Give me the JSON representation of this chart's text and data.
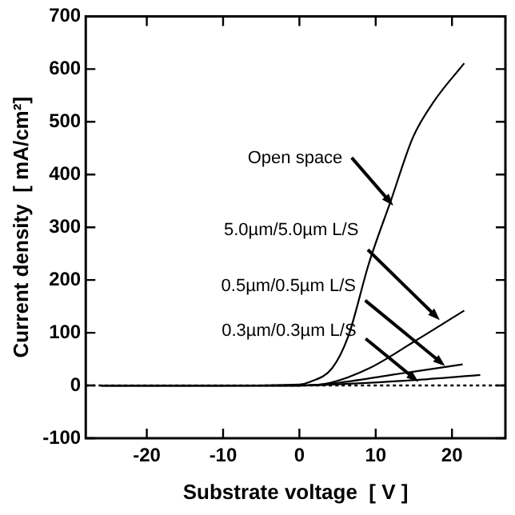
{
  "chart_data": {
    "type": "line",
    "xlabel": "Substrate voltage  [ V ]",
    "ylabel": "Current density  [ mA/cm²]",
    "xlim": [
      -28,
      27
    ],
    "xticks": [
      -20,
      -10,
      0,
      10,
      20
    ],
    "ylim": [
      -100,
      700
    ],
    "yticks": [
      -100,
      0,
      100,
      200,
      300,
      400,
      500,
      600,
      700
    ],
    "grid": false,
    "legend": false,
    "marker": "none",
    "line_style": "solid",
    "series": [
      {
        "color": "#000000",
        "x": [
          -26,
          -10,
          0,
          1.4,
          4.3,
          6.4,
          9.1,
          12,
          14.9,
          17.7,
          21.6
        ],
        "values": [
          0,
          0,
          2,
          7,
          33,
          93,
          231,
          351,
          471,
          540,
          611
        ]
      },
      {
        "color": "#000000",
        "x": [
          -26,
          0,
          4,
          9.2,
          14.9,
          21.6
        ],
        "values": [
          0,
          0,
          5,
          33,
          82,
          142
        ]
      },
      {
        "color": "#000000",
        "x": [
          -26,
          0,
          5,
          12,
          21.4
        ],
        "values": [
          0,
          0,
          5,
          20,
          40
        ]
      },
      {
        "color": "#000000",
        "x": [
          -26,
          0,
          6,
          14.9,
          23.7
        ],
        "values": [
          0,
          0,
          3,
          10,
          20
        ]
      }
    ],
    "ref_lines": [
      {
        "axis": "y",
        "value": 0,
        "color": "#000000",
        "line_style": "dotted"
      }
    ],
    "annotations": [
      {
        "text": "Open space",
        "x": 12.3,
        "y": 341
      },
      {
        "text": "5.0µm/5.0µm L/S",
        "x": 18.4,
        "y": 124
      },
      {
        "text": "0.5µm/0.5µm L/S",
        "x": 19.1,
        "y": 37
      },
      {
        "text": "0.3µm/0.3µm L/S",
        "x": 15.6,
        "y": 7
      }
    ]
  }
}
